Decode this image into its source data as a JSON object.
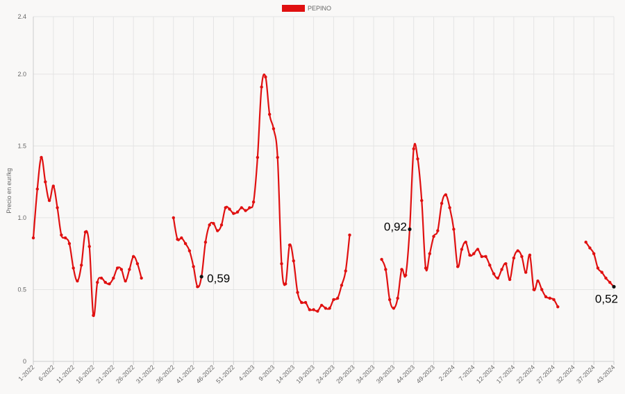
{
  "chart_data": {
    "type": "line",
    "title": "",
    "xlabel": "",
    "ylabel": "Precio en eur/kg",
    "ylim": [
      0,
      2.4
    ],
    "y_ticks": [
      "0",
      "0.5",
      "1.0",
      "1.5",
      "2.0",
      "2.4"
    ],
    "y_tick_values": [
      0,
      0.5,
      1.0,
      1.5,
      2.0,
      2.4
    ],
    "grid": true,
    "legend_position": "top-center",
    "x_tick_labels": [
      "1-2022",
      "6-2022",
      "11-2022",
      "16-2022",
      "21-2022",
      "26-2022",
      "31-2022",
      "36-2022",
      "41-2022",
      "46-2022",
      "51-2022",
      "4-2023",
      "9-2023",
      "14-2023",
      "19-2023",
      "24-2023",
      "29-2023",
      "34-2023",
      "39-2023",
      "44-2023",
      "49-2023",
      "2-2024",
      "7-2024",
      "12-2024",
      "17-2024",
      "22-2024",
      "27-2024",
      "32-2024",
      "37-2024",
      "43-2024"
    ],
    "series": [
      {
        "name": "PEPINO",
        "color": "#e01010",
        "segments": [
          {
            "start_index": 0,
            "values": [
              0.86,
              1.2,
              1.42,
              1.25,
              1.12,
              1.22,
              1.07,
              0.88,
              0.86,
              0.82,
              0.65,
              0.56,
              0.67,
              0.9,
              0.8,
              0.32,
              0.55,
              0.58,
              0.55,
              0.54,
              0.58,
              0.65,
              0.64,
              0.56,
              0.64,
              0.73,
              0.68,
              0.58
            ]
          },
          {
            "start_index": 35,
            "values": [
              1.0,
              0.85,
              0.86,
              0.82,
              0.77,
              0.66,
              0.52,
              0.59,
              0.83,
              0.95,
              0.96,
              0.91,
              0.95,
              1.07,
              1.06,
              1.03,
              1.04,
              1.07,
              1.05,
              1.07,
              1.11,
              1.42,
              1.91,
              1.98,
              1.72,
              1.62,
              1.42,
              0.68,
              0.54,
              0.81,
              0.7,
              0.48,
              0.41,
              0.41,
              0.36,
              0.36,
              0.35,
              0.39,
              0.37,
              0.37,
              0.43,
              0.44,
              0.53,
              0.63,
              0.88
            ]
          },
          {
            "start_index": 87,
            "values": [
              0.71,
              0.64,
              0.43,
              0.37,
              0.44,
              0.64,
              0.6,
              0.92,
              1.48,
              1.41,
              1.12,
              0.65,
              0.75,
              0.87,
              0.91,
              1.1,
              1.16,
              1.07,
              0.92,
              0.66,
              0.78,
              0.83,
              0.74,
              0.75,
              0.78,
              0.73,
              0.73,
              0.67,
              0.61,
              0.58,
              0.64,
              0.68,
              0.57,
              0.72,
              0.77,
              0.73,
              0.62,
              0.74,
              0.5,
              0.56,
              0.5,
              0.45,
              0.44,
              0.43,
              0.38
            ]
          },
          {
            "start_index": 138,
            "values": [
              0.83,
              0.79,
              0.75,
              0.65,
              0.62,
              0.58,
              0.55,
              0.52
            ]
          }
        ]
      }
    ],
    "annotations": [
      {
        "text": "0,59",
        "x_index": 42,
        "y": 0.59,
        "side": "right"
      },
      {
        "text": "0,92",
        "x_index": 94,
        "y": 0.92,
        "side": "left"
      },
      {
        "text": "0,52",
        "x_index": 145,
        "y": 0.52,
        "side": "below-left"
      }
    ]
  }
}
